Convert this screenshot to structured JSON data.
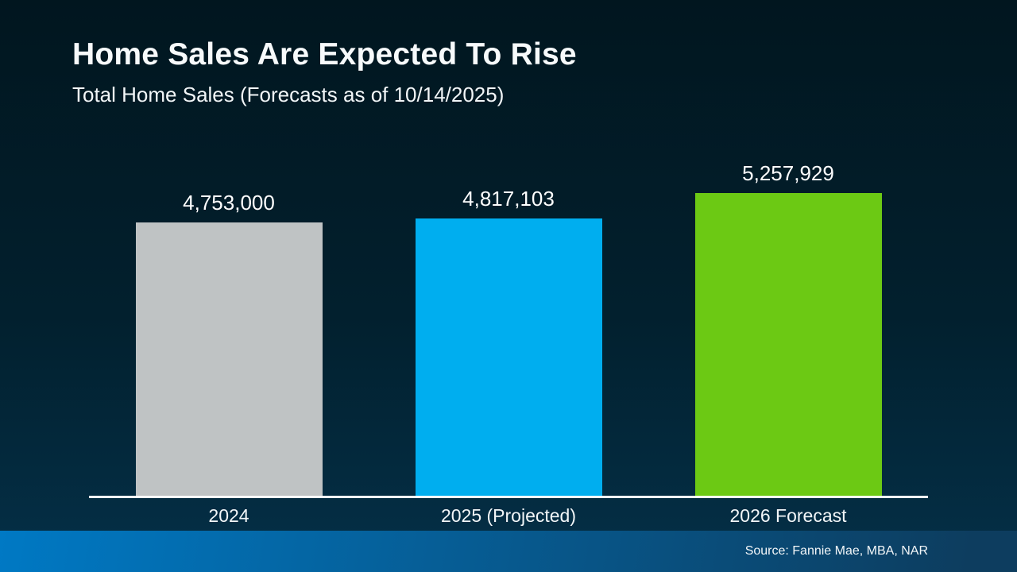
{
  "slide": {
    "title": "Home Sales Are Expected To Rise",
    "subtitle": "Total Home Sales (Forecasts as of 10/14/2025)",
    "source": "Source: Fannie Mae, MBA, NAR"
  },
  "colors": {
    "background_top": "#01161f",
    "background_bottom": "#043048",
    "axis_line": "#ffffff",
    "footer_strip_left": "#0079c4",
    "footer_strip_right": "#0d3d5f",
    "text": "#ffffff"
  },
  "chart_data": {
    "type": "bar",
    "title": "Total Home Sales (Forecasts as of 10/14/2025)",
    "categories": [
      "2024",
      "2025 (Projected)",
      "2026 Forecast"
    ],
    "values": [
      4753000,
      4817103,
      5257929
    ],
    "value_labels": [
      "4,753,000",
      "4,817,103",
      "5,257,929"
    ],
    "series_colors": [
      "#bfc3c4",
      "#00aeef",
      "#6cc914"
    ],
    "xlabel": "",
    "ylabel": "",
    "ylim": [
      0,
      5600000
    ],
    "grid": false,
    "legend_position": "none",
    "data_labels": "above bars"
  }
}
